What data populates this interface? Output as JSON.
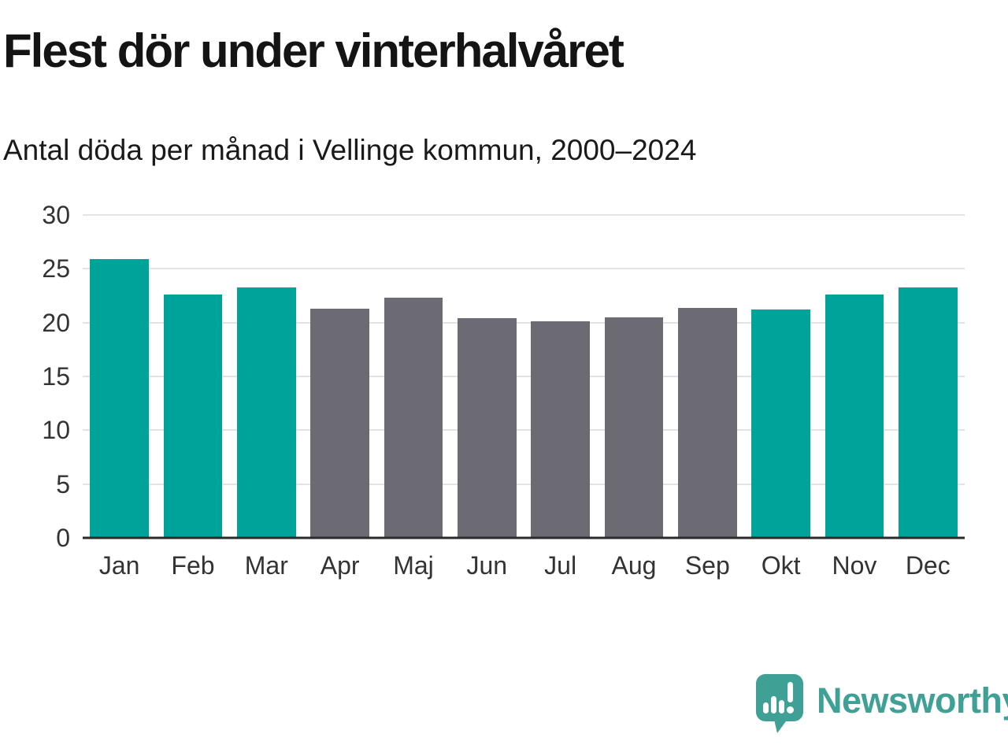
{
  "header": {
    "title": "Flest dör under vinterhalvåret",
    "subtitle": "Antal döda per månad i Vellinge kommun, 2000–2024"
  },
  "chart_data": {
    "type": "bar",
    "title": "Flest dör under vinterhalvåret",
    "subtitle": "Antal döda per månad i Vellinge kommun, 2000–2024",
    "categories": [
      "Jan",
      "Feb",
      "Mar",
      "Apr",
      "Maj",
      "Jun",
      "Jul",
      "Aug",
      "Sep",
      "Okt",
      "Nov",
      "Dec"
    ],
    "values": [
      25.9,
      22.6,
      23.3,
      21.3,
      22.3,
      20.4,
      20.1,
      20.5,
      21.4,
      21.2,
      22.6,
      23.3
    ],
    "xlabel": "",
    "ylabel": "",
    "ylim": [
      0,
      30
    ],
    "yticks": [
      0,
      5,
      10,
      15,
      20,
      25,
      30
    ],
    "grid": true,
    "legend": false,
    "bar_palette": {
      "teal": "#00a39a",
      "gray": "#6c6b73"
    },
    "bar_color_keys": [
      "teal",
      "teal",
      "teal",
      "gray",
      "gray",
      "gray",
      "gray",
      "gray",
      "gray",
      "teal",
      "teal",
      "teal"
    ],
    "highlight_note": "winter months highlighted in teal"
  },
  "footer": {
    "logo_text": "Newsworthy",
    "logo_color": "#3fa096"
  }
}
